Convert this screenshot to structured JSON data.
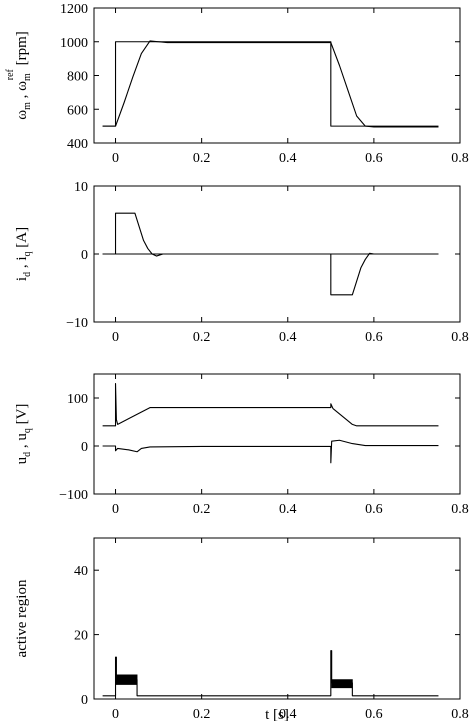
{
  "chart_data": [
    {
      "type": "line",
      "ylabel": "ω_m , ω_m^ref [rpm]",
      "xlabel": "",
      "xlim": [
        -0.05,
        0.8
      ],
      "ylim": [
        400,
        1200
      ],
      "xticks": [
        0,
        0.2,
        0.4,
        0.6,
        0.8
      ],
      "xtick_labels": [
        "0",
        "0.2",
        "0.4",
        "0.6",
        "0.8"
      ],
      "yticks": [
        400,
        600,
        800,
        1000,
        1200
      ],
      "ytick_labels": [
        "400",
        "600",
        "800",
        "1000",
        "1200"
      ],
      "grid": false,
      "series": [
        {
          "x": [
            -0.03,
            0,
            0,
            0.5,
            0.5,
            0.75
          ],
          "y": [
            500,
            500,
            1000,
            1000,
            500,
            500
          ]
        },
        {
          "x": [
            -0.03,
            0,
            0.02,
            0.04,
            0.06,
            0.08,
            0.1,
            0.12,
            0.2,
            0.5,
            0.52,
            0.54,
            0.56,
            0.58,
            0.6,
            0.75
          ],
          "y": [
            500,
            500,
            640,
            790,
            930,
            1005,
            1000,
            995,
            995,
            995,
            860,
            710,
            560,
            500,
            495,
            495
          ]
        }
      ]
    },
    {
      "type": "line",
      "ylabel": "i_d , i_q [A]",
      "xlabel": "",
      "xlim": [
        -0.05,
        0.8
      ],
      "ylim": [
        -10,
        10
      ],
      "xticks": [
        0,
        0.2,
        0.4,
        0.6,
        0.8
      ],
      "xtick_labels": [
        "0",
        "0.2",
        "0.4",
        "0.6",
        "0.8"
      ],
      "yticks": [
        -10,
        0,
        10
      ],
      "ytick_labels": [
        "−10",
        "0",
        "10"
      ],
      "grid": false,
      "series": [
        {
          "x": [
            -0.03,
            0.75
          ],
          "y": [
            0,
            0
          ]
        },
        {
          "x": [
            -0.03,
            0,
            0,
            0.045,
            0.055,
            0.065,
            0.075,
            0.085,
            0.095,
            0.11,
            0.5,
            0.5,
            0.55,
            0.56,
            0.57,
            0.58,
            0.59,
            0.6,
            0.75
          ],
          "y": [
            0,
            0,
            6,
            6,
            4,
            2,
            0.8,
            0,
            -0.3,
            0,
            0,
            -6,
            -6,
            -4,
            -2,
            -0.8,
            0.1,
            0,
            0
          ]
        }
      ]
    },
    {
      "type": "line",
      "ylabel": "u_d , u_q [V]",
      "xlabel": "",
      "xlim": [
        -0.05,
        0.8
      ],
      "ylim": [
        -100,
        150
      ],
      "xticks": [
        0,
        0.2,
        0.4,
        0.6,
        0.8
      ],
      "xtick_labels": [
        "0",
        "0.2",
        "0.4",
        "0.6",
        "0.8"
      ],
      "yticks": [
        -100,
        0,
        100
      ],
      "ytick_labels": [
        "−100",
        "0",
        "100"
      ],
      "grid": false,
      "series": [
        {
          "x": [
            -0.03,
            0,
            0,
            0.002,
            0.005,
            0.08,
            0.5,
            0.5,
            0.505,
            0.55,
            0.56,
            0.75
          ],
          "y": [
            42,
            42,
            130,
            55,
            45,
            80,
            80,
            88,
            78,
            45,
            42,
            42
          ]
        },
        {
          "x": [
            -0.03,
            0,
            0,
            0.005,
            0.03,
            0.05,
            0.06,
            0.08,
            0.2,
            0.5,
            0.5,
            0.502,
            0.52,
            0.55,
            0.58,
            0.75
          ],
          "y": [
            0,
            0,
            -10,
            -5,
            -8,
            -12,
            -5,
            -2,
            -1,
            -1,
            -35,
            10,
            12,
            5,
            1,
            1
          ]
        }
      ]
    },
    {
      "type": "line",
      "ylabel": "active region",
      "xlabel": "t [s]",
      "xlim": [
        -0.05,
        0.8
      ],
      "ylim": [
        0,
        50
      ],
      "xticks": [
        0,
        0.2,
        0.4,
        0.6,
        0.8
      ],
      "xtick_labels": [
        "0",
        "0.2",
        "0.4",
        "0.6",
        "0.8"
      ],
      "yticks": [
        0,
        20,
        40
      ],
      "ytick_labels": [
        "0",
        "20",
        "40"
      ],
      "grid": false,
      "series": [
        {
          "x": [
            -0.03,
            0,
            0,
            0.002,
            0.002,
            0.05,
            0.05,
            0.5,
            0.5,
            0.502,
            0.502,
            0.55,
            0.55,
            0.75
          ],
          "y": [
            1,
            1,
            13,
            13,
            6,
            6,
            1,
            1,
            15,
            15,
            5,
            5,
            1,
            1
          ]
        },
        {
          "x": [
            0.002,
            0.05,
            0.05,
            0.002
          ],
          "y": [
            4.5,
            4.5,
            7.5,
            7.5
          ],
          "fill": true
        },
        {
          "x": [
            0.502,
            0.55,
            0.55,
            0.502
          ],
          "y": [
            3.5,
            3.5,
            6,
            6
          ],
          "fill": true
        }
      ]
    }
  ]
}
